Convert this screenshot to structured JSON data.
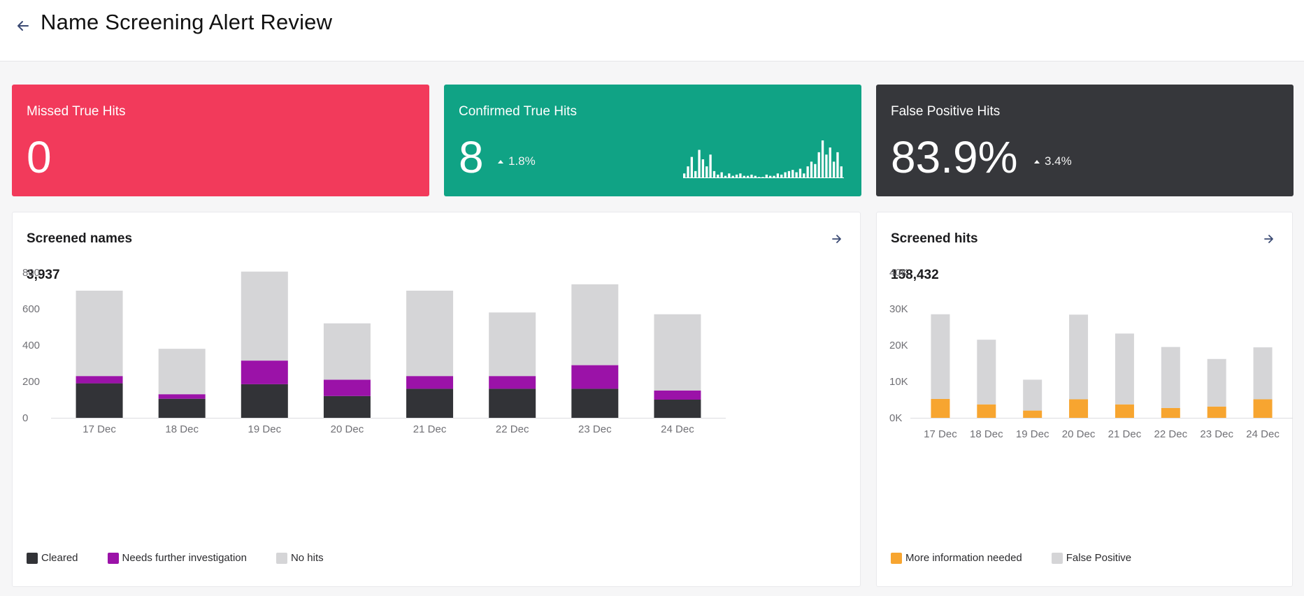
{
  "header": {
    "title": "Name Screening Alert Review",
    "back_icon": "arrow-left-icon"
  },
  "kpis": [
    {
      "title": "Missed True Hits",
      "value": "0",
      "color": "#f23a5b"
    },
    {
      "title": "Confirmed True Hits",
      "value": "8",
      "trend": "1.8%",
      "trend_direction": "up",
      "color": "#10a385",
      "sparkline": [
        4,
        10,
        18,
        6,
        24,
        16,
        10,
        20,
        6,
        3,
        5,
        2,
        4,
        2,
        3,
        4,
        2,
        2,
        3,
        2,
        1,
        1,
        3,
        2,
        2,
        4,
        3,
        5,
        6,
        7,
        5,
        8,
        4,
        10,
        14,
        12,
        22,
        32,
        20,
        26,
        14,
        22,
        10
      ]
    },
    {
      "title": "False Positive Hits",
      "value": "83.9%",
      "trend": "3.4%",
      "trend_direction": "up",
      "color": "#36373b"
    }
  ],
  "screened_names": {
    "title": "Screened names",
    "total": "3,937",
    "arrow_icon": "arrow-right-icon",
    "chart_data": {
      "type": "bar",
      "stacked": true,
      "categories": [
        "17 Dec",
        "18 Dec",
        "19 Dec",
        "20 Dec",
        "21 Dec",
        "22 Dec",
        "23 Dec",
        "24 Dec"
      ],
      "series": [
        {
          "name": "Cleared",
          "color": "#323337",
          "values": [
            190,
            105,
            185,
            120,
            160,
            160,
            160,
            100
          ]
        },
        {
          "name": "Needs further investigation",
          "color": "#9b12a8",
          "values": [
            40,
            25,
            130,
            90,
            70,
            70,
            130,
            50
          ]
        },
        {
          "name": "No hits",
          "color": "#d5d5d7",
          "values": [
            470,
            250,
            490,
            310,
            470,
            350,
            445,
            420
          ]
        }
      ],
      "yticks": [
        "0",
        "200",
        "400",
        "600",
        "800"
      ],
      "ylim": [
        0,
        800
      ],
      "legend_position": "bottom-left"
    }
  },
  "screened_hits": {
    "title": "Screened hits",
    "total": "158,432",
    "arrow_icon": "arrow-right-icon",
    "chart_data": {
      "type": "bar",
      "stacked": true,
      "categories": [
        "17 Dec",
        "18 Dec",
        "19 Dec",
        "20 Dec",
        "21 Dec",
        "22 Dec",
        "23 Dec",
        "24 Dec"
      ],
      "series": [
        {
          "name": "More information needed",
          "color": "#f7a530",
          "values": [
            5200,
            3700,
            2000,
            5100,
            3700,
            2700,
            3100,
            5100
          ]
        },
        {
          "name": "False Positive",
          "color": "#d5d5d7",
          "values": [
            23300,
            17800,
            8500,
            23300,
            19500,
            16800,
            13100,
            14300
          ]
        }
      ],
      "yticks": [
        "0K",
        "10K",
        "20K",
        "30K",
        "40K"
      ],
      "ylim": [
        0,
        40000
      ],
      "legend_position": "bottom-left"
    }
  }
}
